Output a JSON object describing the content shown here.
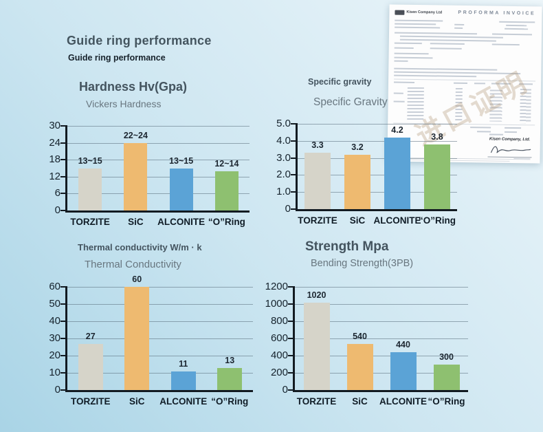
{
  "page": {
    "title": "Guide ring performance",
    "subtitle": "Guide ring performance"
  },
  "document": {
    "header_title": "PROFORMA INVOICE",
    "company": "Kisen Company Ltd",
    "signature_company": "Kisen Company, Ltd.",
    "watermark": "进口证明"
  },
  "colors": {
    "bars": [
      "#d6d4c9",
      "#eeba70",
      "#5ba3d6",
      "#8ec070"
    ],
    "axis": "#121a21",
    "grid": "#5a6c7a",
    "background_top": "#edf6fa",
    "background_bottom": "#a9d4e6"
  },
  "chart_data": [
    {
      "type": "bar",
      "title": "Hardness Hv(Gpa)",
      "subtitle": "Vickers Hardness",
      "categories": [
        "TORZITE",
        "SiC",
        "ALCONITE",
        "“O”Ring"
      ],
      "values": [
        15,
        24,
        15,
        14
      ],
      "bar_labels": [
        "13~15",
        "22~24",
        "13~15",
        "12~14"
      ],
      "xlabel": "",
      "ylabel": "",
      "ylim": [
        0,
        30
      ],
      "yticks": [
        0,
        6,
        12,
        18,
        24,
        30
      ],
      "ytick_labels": [
        "0",
        "6",
        "12",
        "18",
        "24",
        "30"
      ],
      "grid": true,
      "legend": false
    },
    {
      "type": "bar",
      "title": "Specific gravity",
      "subtitle": "Specific Gravity",
      "categories": [
        "TORZITE",
        "SiC",
        "ALCONITE",
        "“O”Ring"
      ],
      "values": [
        3.3,
        3.2,
        4.2,
        3.8
      ],
      "bar_labels": [
        "3.3",
        "3.2",
        "4.2",
        "3.8"
      ],
      "xlabel": "",
      "ylabel": "",
      "ylim": [
        0,
        5
      ],
      "yticks": [
        0,
        1,
        2,
        3,
        4,
        5
      ],
      "ytick_labels": [
        "0",
        "1.0",
        "2.0",
        "3.0",
        "4.0",
        "5.0"
      ],
      "grid": true,
      "legend": false
    },
    {
      "type": "bar",
      "title": "Thermal conductivity W/m · k",
      "subtitle": "Thermal Conductivity",
      "categories": [
        "TORZITE",
        "SiC",
        "ALCONITE",
        "“O”Ring"
      ],
      "values": [
        27,
        60,
        11,
        13
      ],
      "bar_labels": [
        "27",
        "60",
        "11",
        "13"
      ],
      "xlabel": "",
      "ylabel": "",
      "ylim": [
        0,
        60
      ],
      "yticks": [
        0,
        10,
        20,
        30,
        40,
        50,
        60
      ],
      "ytick_labels": [
        "0",
        "10",
        "20",
        "30",
        "40",
        "50",
        "60"
      ],
      "grid": true,
      "legend": false
    },
    {
      "type": "bar",
      "title": "Strength Mpa",
      "subtitle": "Bending Strength(3PB)",
      "categories": [
        "TORZITE",
        "SiC",
        "ALCONITE",
        "“O”Ring"
      ],
      "values": [
        1020,
        540,
        440,
        300
      ],
      "bar_labels": [
        "1020",
        "540",
        "440",
        "300"
      ],
      "xlabel": "",
      "ylabel": "",
      "ylim": [
        0,
        1200
      ],
      "yticks": [
        0,
        200,
        400,
        600,
        800,
        1000,
        1200
      ],
      "ytick_labels": [
        "0",
        "200",
        "400",
        "600",
        "800",
        "1000",
        "1200"
      ],
      "grid": true,
      "legend": false
    }
  ]
}
